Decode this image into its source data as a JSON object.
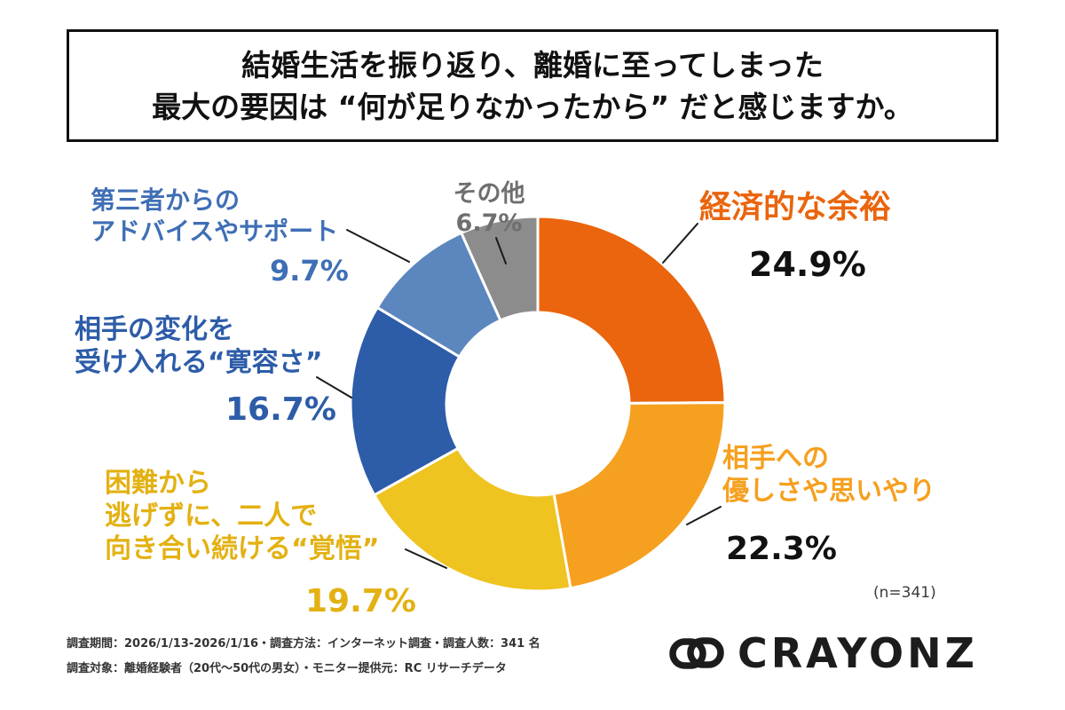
{
  "title": {
    "line1": "結婚生活を振り返り、離婚に至ってしまった",
    "line2": "最大の要因は “何が足りなかったから” だと感じますか。"
  },
  "chart_data": {
    "type": "pie",
    "style": "donut",
    "start_at": "top",
    "direction": "clockwise",
    "total": 100,
    "sample_note": "(n=341)",
    "gap_stroke_color": "#ffffff",
    "segments": [
      {
        "label": "経済的な余裕",
        "label_lines": [
          "経済的な余裕"
        ],
        "value": 24.9,
        "percent_label": "24.9%",
        "color": "#EA650D",
        "label_color": "#EA650D",
        "pct_color": "#111111"
      },
      {
        "label": "相手への優しさや思いやり",
        "label_lines": [
          "相手への",
          "優しさや思いやり"
        ],
        "value": 22.3,
        "percent_label": "22.3%",
        "color": "#F6A01F",
        "label_color": "#F6A01F",
        "pct_color": "#111111"
      },
      {
        "label": "困難から逃げずに、二人で向き合い続ける“覚悟”",
        "label_lines": [
          "困難から",
          "逃げずに、二人で",
          "向き合い続ける“覚悟”"
        ],
        "value": 19.7,
        "percent_label": "19.7%",
        "color": "#EFC320",
        "label_color": "#E3B112",
        "pct_color": "#E3B112"
      },
      {
        "label": "相手の変化を受け入れる“寛容さ”",
        "label_lines": [
          "相手の変化を",
          "受け入れる“寛容さ”"
        ],
        "value": 16.7,
        "percent_label": "16.7%",
        "color": "#2D5CA8",
        "label_color": "#2D5CA8",
        "pct_color": "#2D5CA8"
      },
      {
        "label": "第三者からのアドバイスやサポート",
        "label_lines": [
          "第三者からの",
          "アドバイスやサポート"
        ],
        "value": 9.7,
        "percent_label": "9.7%",
        "color": "#5C86BE",
        "label_color": "#3F6FB5",
        "pct_color": "#3F6FB5"
      },
      {
        "label": "その他",
        "label_lines": [
          "その他"
        ],
        "value": 6.7,
        "percent_label": "6.7%",
        "color": "#8C8C8C",
        "label_color": "#6F6F6F",
        "pct_color": "#6F6F6F"
      }
    ]
  },
  "footer": {
    "line1": "調査期間：2026/1/13-2026/1/16・調査方法：インターネット調査・調査人数：341 名",
    "line2": "調査対象：離婚経験者（20代～50代の男女）・モニター提供元：RC リサーチデータ"
  },
  "logo": {
    "text": "CRAYONZ"
  }
}
